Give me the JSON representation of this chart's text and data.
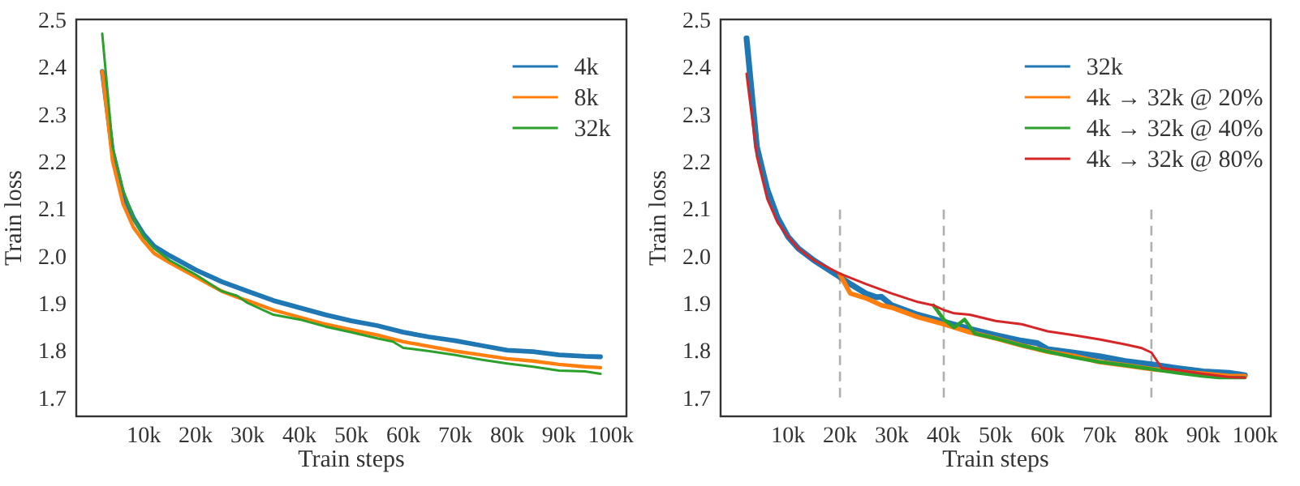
{
  "chart_data": [
    {
      "type": "line",
      "xlabel": "Train steps",
      "ylabel": "Train loss",
      "legend": "top right",
      "grid": false,
      "xlim": [
        -3000,
        103000
      ],
      "ylim": [
        1.66,
        2.5
      ],
      "xticks": [
        {
          "value": 10000,
          "label": "10k"
        },
        {
          "value": 20000,
          "label": "20k"
        },
        {
          "value": 30000,
          "label": "30k"
        },
        {
          "value": 40000,
          "label": "40k"
        },
        {
          "value": 50000,
          "label": "50k"
        },
        {
          "value": 60000,
          "label": "60k"
        },
        {
          "value": 70000,
          "label": "70k"
        },
        {
          "value": 80000,
          "label": "80k"
        },
        {
          "value": 90000,
          "label": "90k"
        },
        {
          "value": 100000,
          "label": "100k"
        }
      ],
      "yticks": [
        1.7,
        1.8,
        1.9,
        {
          "value": 2,
          "label": "2.0"
        },
        2.1,
        2.2,
        2.3,
        2.4,
        2.5
      ],
      "series": [
        {
          "name": "4k",
          "color": "#1f77b4",
          "x": [
            2000,
            4000,
            6000,
            8000,
            10000,
            12000,
            15000,
            20000,
            25000,
            30000,
            35000,
            40000,
            45000,
            50000,
            55000,
            60000,
            65000,
            70000,
            75000,
            80000,
            85000,
            90000,
            95000,
            98000
          ],
          "values": [
            2.39,
            2.22,
            2.13,
            2.08,
            2.045,
            2.02,
            2.0,
            1.97,
            1.945,
            1.925,
            1.905,
            1.89,
            1.875,
            1.862,
            1.852,
            1.838,
            1.828,
            1.82,
            1.81,
            1.8,
            1.797,
            1.79,
            1.787,
            1.786
          ]
        },
        {
          "name": "8k",
          "color": "#ff7f0e",
          "x": [
            2000,
            4000,
            6000,
            8000,
            10000,
            12000,
            15000,
            20000,
            25000,
            28000,
            30000,
            35000,
            40000,
            45000,
            50000,
            55000,
            60000,
            65000,
            70000,
            75000,
            80000,
            85000,
            90000,
            95000,
            98000
          ],
          "values": [
            2.39,
            2.2,
            2.11,
            2.06,
            2.03,
            2.005,
            1.985,
            1.955,
            1.925,
            1.912,
            1.905,
            1.885,
            1.87,
            1.855,
            1.843,
            1.832,
            1.818,
            1.808,
            1.798,
            1.79,
            1.782,
            1.777,
            1.77,
            1.765,
            1.763
          ]
        },
        {
          "name": "32k",
          "color": "#2ca02c",
          "x": [
            2000,
            4000,
            6000,
            8000,
            10000,
            12000,
            15000,
            20000,
            25000,
            28000,
            30000,
            35000,
            40000,
            45000,
            50000,
            55000,
            58000,
            60000,
            65000,
            70000,
            75000,
            80000,
            85000,
            90000,
            95000,
            98000
          ],
          "values": [
            2.47,
            2.23,
            2.14,
            2.08,
            2.04,
            2.015,
            1.99,
            1.96,
            1.925,
            1.915,
            1.9,
            1.875,
            1.865,
            1.85,
            1.838,
            1.825,
            1.818,
            1.805,
            1.798,
            1.79,
            1.78,
            1.772,
            1.765,
            1.757,
            1.755,
            1.75
          ]
        }
      ]
    },
    {
      "type": "line",
      "xlabel": "Train steps",
      "ylabel": "Train loss",
      "legend": "top right",
      "grid": false,
      "xlim": [
        -3000,
        103000
      ],
      "ylim": [
        1.66,
        2.5
      ],
      "xticks": [
        {
          "value": 10000,
          "label": "10k"
        },
        {
          "value": 20000,
          "label": "20k"
        },
        {
          "value": 30000,
          "label": "30k"
        },
        {
          "value": 40000,
          "label": "40k"
        },
        {
          "value": 50000,
          "label": "50k"
        },
        {
          "value": 60000,
          "label": "60k"
        },
        {
          "value": 70000,
          "label": "70k"
        },
        {
          "value": 80000,
          "label": "80k"
        },
        {
          "value": 90000,
          "label": "90k"
        },
        {
          "value": 100000,
          "label": "100k"
        }
      ],
      "yticks": [
        1.7,
        1.8,
        1.9,
        {
          "value": 2,
          "label": "2.0"
        },
        2.1,
        2.2,
        2.3,
        2.4,
        2.5
      ],
      "ref_lines": [
        {
          "axis": "x",
          "value": 20000,
          "color": "#b0b0b0",
          "line_style": "dashed"
        },
        {
          "axis": "x",
          "value": 40000,
          "color": "#b0b0b0",
          "line_style": "dashed"
        },
        {
          "axis": "x",
          "value": 80000,
          "color": "#b0b0b0",
          "line_style": "dashed"
        }
      ],
      "series": [
        {
          "name": "32k",
          "color": "#1f77b4",
          "x": [
            2000,
            4000,
            6000,
            8000,
            10000,
            12000,
            15000,
            20000,
            22000,
            25000,
            27000,
            28000,
            30000,
            35000,
            40000,
            45000,
            50000,
            55000,
            58000,
            60000,
            65000,
            70000,
            75000,
            80000,
            85000,
            90000,
            95000,
            98000
          ],
          "values": [
            2.46,
            2.23,
            2.14,
            2.08,
            2.04,
            2.015,
            1.99,
            1.955,
            1.94,
            1.92,
            1.912,
            1.913,
            1.895,
            1.875,
            1.86,
            1.845,
            1.832,
            1.82,
            1.815,
            1.802,
            1.795,
            1.787,
            1.777,
            1.77,
            1.762,
            1.755,
            1.752,
            1.747
          ]
        },
        {
          "name": "4k → 32k @ 20%",
          "color": "#ff7f0e",
          "x": [
            20000,
            22000,
            25000,
            28000,
            30000,
            35000,
            40000,
            45000,
            50000,
            55000,
            60000,
            65000,
            70000,
            75000,
            80000,
            85000,
            90000,
            95000,
            98000
          ],
          "values": [
            1.96,
            1.92,
            1.91,
            1.895,
            1.89,
            1.87,
            1.855,
            1.838,
            1.825,
            1.81,
            1.797,
            1.788,
            1.775,
            1.768,
            1.76,
            1.755,
            1.75,
            1.745,
            1.745
          ]
        },
        {
          "name": "4k → 32k @ 40%",
          "color": "#2ca02c",
          "x": [
            38000,
            40000,
            42000,
            44000,
            46000,
            50000,
            55000,
            60000,
            65000,
            70000,
            75000,
            80000,
            85000,
            90000,
            93000,
            98000
          ],
          "values": [
            1.895,
            1.865,
            1.848,
            1.865,
            1.835,
            1.825,
            1.81,
            1.797,
            1.785,
            1.775,
            1.768,
            1.76,
            1.752,
            1.745,
            1.742,
            1.742
          ]
        },
        {
          "name": "4k → 32k @ 80%",
          "color": "#d62728",
          "x": [
            2000,
            4000,
            6000,
            8000,
            10000,
            12000,
            15000,
            20000,
            25000,
            30000,
            35000,
            38000,
            40000,
            42000,
            45000,
            50000,
            55000,
            60000,
            65000,
            70000,
            75000,
            78000,
            80000,
            82000,
            85000,
            90000,
            95000,
            98000
          ],
          "values": [
            2.385,
            2.21,
            2.12,
            2.07,
            2.04,
            2.015,
            1.99,
            1.962,
            1.94,
            1.92,
            1.902,
            1.895,
            1.885,
            1.878,
            1.875,
            1.862,
            1.855,
            1.84,
            1.832,
            1.823,
            1.812,
            1.805,
            1.795,
            1.762,
            1.758,
            1.75,
            1.743,
            1.742
          ]
        }
      ]
    }
  ]
}
